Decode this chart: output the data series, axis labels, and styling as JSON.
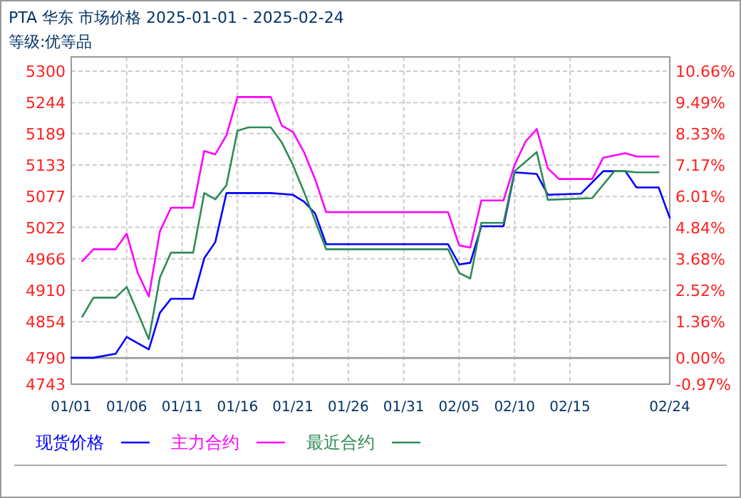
{
  "chart_data": {
    "type": "line",
    "title": "PTA 华东 市场价格 2025-01-01 - 2025-02-24",
    "subtitle": "等级:优等品",
    "xlim": [
      "2025-01-01",
      "2025-02-24"
    ],
    "xticks": [
      {
        "value": "2025-01-01",
        "label": "01/01"
      },
      {
        "value": "2025-01-06",
        "label": "01/06"
      },
      {
        "value": "2025-01-11",
        "label": "01/11"
      },
      {
        "value": "2025-01-16",
        "label": "01/16"
      },
      {
        "value": "2025-01-21",
        "label": "01/21"
      },
      {
        "value": "2025-01-26",
        "label": "01/26"
      },
      {
        "value": "2025-01-31",
        "label": "01/31"
      },
      {
        "value": "2025-02-05",
        "label": "02/05"
      },
      {
        "value": "2025-02-10",
        "label": "02/10"
      },
      {
        "value": "2025-02-15",
        "label": "02/15"
      },
      {
        "value": "2025-02-24",
        "label": "02/24"
      }
    ],
    "ylim": [
      4743,
      5300
    ],
    "yticks": [
      4743,
      4790,
      4854,
      4910,
      4966,
      5022,
      5077,
      5133,
      5189,
      5244,
      5300
    ],
    "y2lim": [
      -0.97,
      10.66
    ],
    "y2ticks": [
      {
        "value": -0.97,
        "label": "-0.97%"
      },
      {
        "value": 0,
        "label": "0.00%"
      },
      {
        "value": 1.36,
        "label": "1.36%"
      },
      {
        "value": 2.52,
        "label": "2.52%"
      },
      {
        "value": 3.68,
        "label": "3.68%"
      },
      {
        "value": 4.84,
        "label": "4.84%"
      },
      {
        "value": 6.01,
        "label": "6.01%"
      },
      {
        "value": 7.17,
        "label": "7.17%"
      },
      {
        "value": 8.33,
        "label": "8.33%"
      },
      {
        "value": 9.49,
        "label": "9.49%"
      },
      {
        "value": 10.66,
        "label": "10.66%"
      }
    ],
    "grid": true,
    "legend": "bottom",
    "marker": "none",
    "line_style": "solid",
    "ref_lines": [
      {
        "axis": "y2",
        "value": 0,
        "color": "#999999"
      }
    ],
    "series": [
      {
        "name": "现货价格",
        "color": "#0000ff",
        "x": [
          "2025-01-01",
          "2025-01-03",
          "2025-01-05",
          "2025-01-06",
          "2025-01-08",
          "2025-01-09",
          "2025-01-10",
          "2025-01-12",
          "2025-01-13",
          "2025-01-14",
          "2025-01-15",
          "2025-01-19",
          "2025-01-21",
          "2025-01-22",
          "2025-01-23",
          "2025-01-24",
          "2025-02-04",
          "2025-02-05",
          "2025-02-06",
          "2025-02-07",
          "2025-02-09",
          "2025-02-10",
          "2025-02-12",
          "2025-02-13",
          "2025-02-16",
          "2025-02-18",
          "2025-02-20",
          "2025-02-21",
          "2025-02-23",
          "2025-02-24"
        ],
        "values": [
          4790,
          4790,
          4797,
          4827,
          4805,
          4870,
          4895,
          4895,
          4967,
          4996,
          5083,
          5083,
          5080,
          5068,
          5047,
          4992,
          4992,
          4956,
          4959,
          5024,
          5024,
          5120,
          5117,
          5080,
          5082,
          5122,
          5122,
          5093,
          5093,
          5039
        ]
      },
      {
        "name": "主力合约",
        "color": "#ff00ff",
        "x": [
          "2025-01-02",
          "2025-01-03",
          "2025-01-05",
          "2025-01-06",
          "2025-01-07",
          "2025-01-08",
          "2025-01-09",
          "2025-01-10",
          "2025-01-12",
          "2025-01-13",
          "2025-01-14",
          "2025-01-15",
          "2025-01-16",
          "2025-01-19",
          "2025-01-20",
          "2025-01-21",
          "2025-01-22",
          "2025-01-23",
          "2025-01-24",
          "2025-02-04",
          "2025-02-05",
          "2025-02-06",
          "2025-02-07",
          "2025-02-09",
          "2025-02-10",
          "2025-02-11",
          "2025-02-12",
          "2025-02-13",
          "2025-02-14",
          "2025-02-17",
          "2025-02-18",
          "2025-02-20",
          "2025-02-21",
          "2025-02-23"
        ],
        "values": [
          4962,
          4983,
          4983,
          5011,
          4941,
          4899,
          5015,
          5057,
          5057,
          5158,
          5152,
          5186,
          5254,
          5254,
          5203,
          5192,
          5156,
          5108,
          5049,
          5049,
          4990,
          4986,
          5070,
          5070,
          5133,
          5175,
          5197,
          5127,
          5108,
          5108,
          5146,
          5154,
          5148,
          5148
        ]
      },
      {
        "name": "最近合约",
        "color": "#2e8b57",
        "x": [
          "2025-01-02",
          "2025-01-03",
          "2025-01-05",
          "2025-01-06",
          "2025-01-07",
          "2025-01-08",
          "2025-01-09",
          "2025-01-10",
          "2025-01-12",
          "2025-01-13",
          "2025-01-14",
          "2025-01-15",
          "2025-01-16",
          "2025-01-17",
          "2025-01-19",
          "2025-01-20",
          "2025-01-21",
          "2025-01-22",
          "2025-01-23",
          "2025-01-24",
          "2025-02-04",
          "2025-02-05",
          "2025-02-06",
          "2025-02-07",
          "2025-02-09",
          "2025-02-10",
          "2025-02-12",
          "2025-02-13",
          "2025-02-17",
          "2025-02-19",
          "2025-02-20",
          "2025-02-21",
          "2025-02-23"
        ],
        "values": [
          4863,
          4897,
          4897,
          4916,
          4870,
          4823,
          4933,
          4977,
          4977,
          5083,
          5072,
          5097,
          5194,
          5200,
          5200,
          5173,
          5133,
          5085,
          5034,
          4983,
          4983,
          4941,
          4931,
          5030,
          5030,
          5122,
          5156,
          5071,
          5074,
          5122,
          5122,
          5120,
          5120
        ]
      }
    ]
  }
}
